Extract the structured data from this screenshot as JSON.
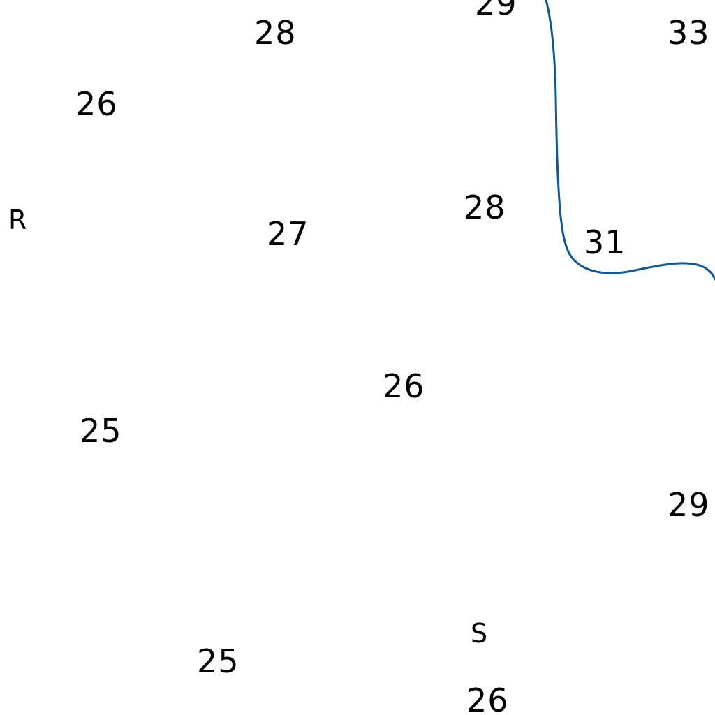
{
  "map": {
    "soundings": [
      {
        "id": "s1",
        "value": "29"
      },
      {
        "id": "s2",
        "value": "28"
      },
      {
        "id": "s3",
        "value": "33"
      },
      {
        "id": "s4",
        "value": "26"
      },
      {
        "id": "s5",
        "value": "28"
      },
      {
        "id": "s6",
        "value": "27"
      },
      {
        "id": "s7",
        "value": "31"
      },
      {
        "id": "s8",
        "value": "26"
      },
      {
        "id": "s9",
        "value": "25"
      },
      {
        "id": "s10",
        "value": "29"
      },
      {
        "id": "s11",
        "value": "25"
      },
      {
        "id": "s12",
        "value": "26"
      }
    ],
    "bottom_notes": [
      {
        "id": "b1",
        "value": "R"
      },
      {
        "id": "b2",
        "value": "S"
      }
    ],
    "colors": {
      "background": "#ffffff",
      "text": "#000000",
      "contour": "#0a5a9c"
    }
  }
}
